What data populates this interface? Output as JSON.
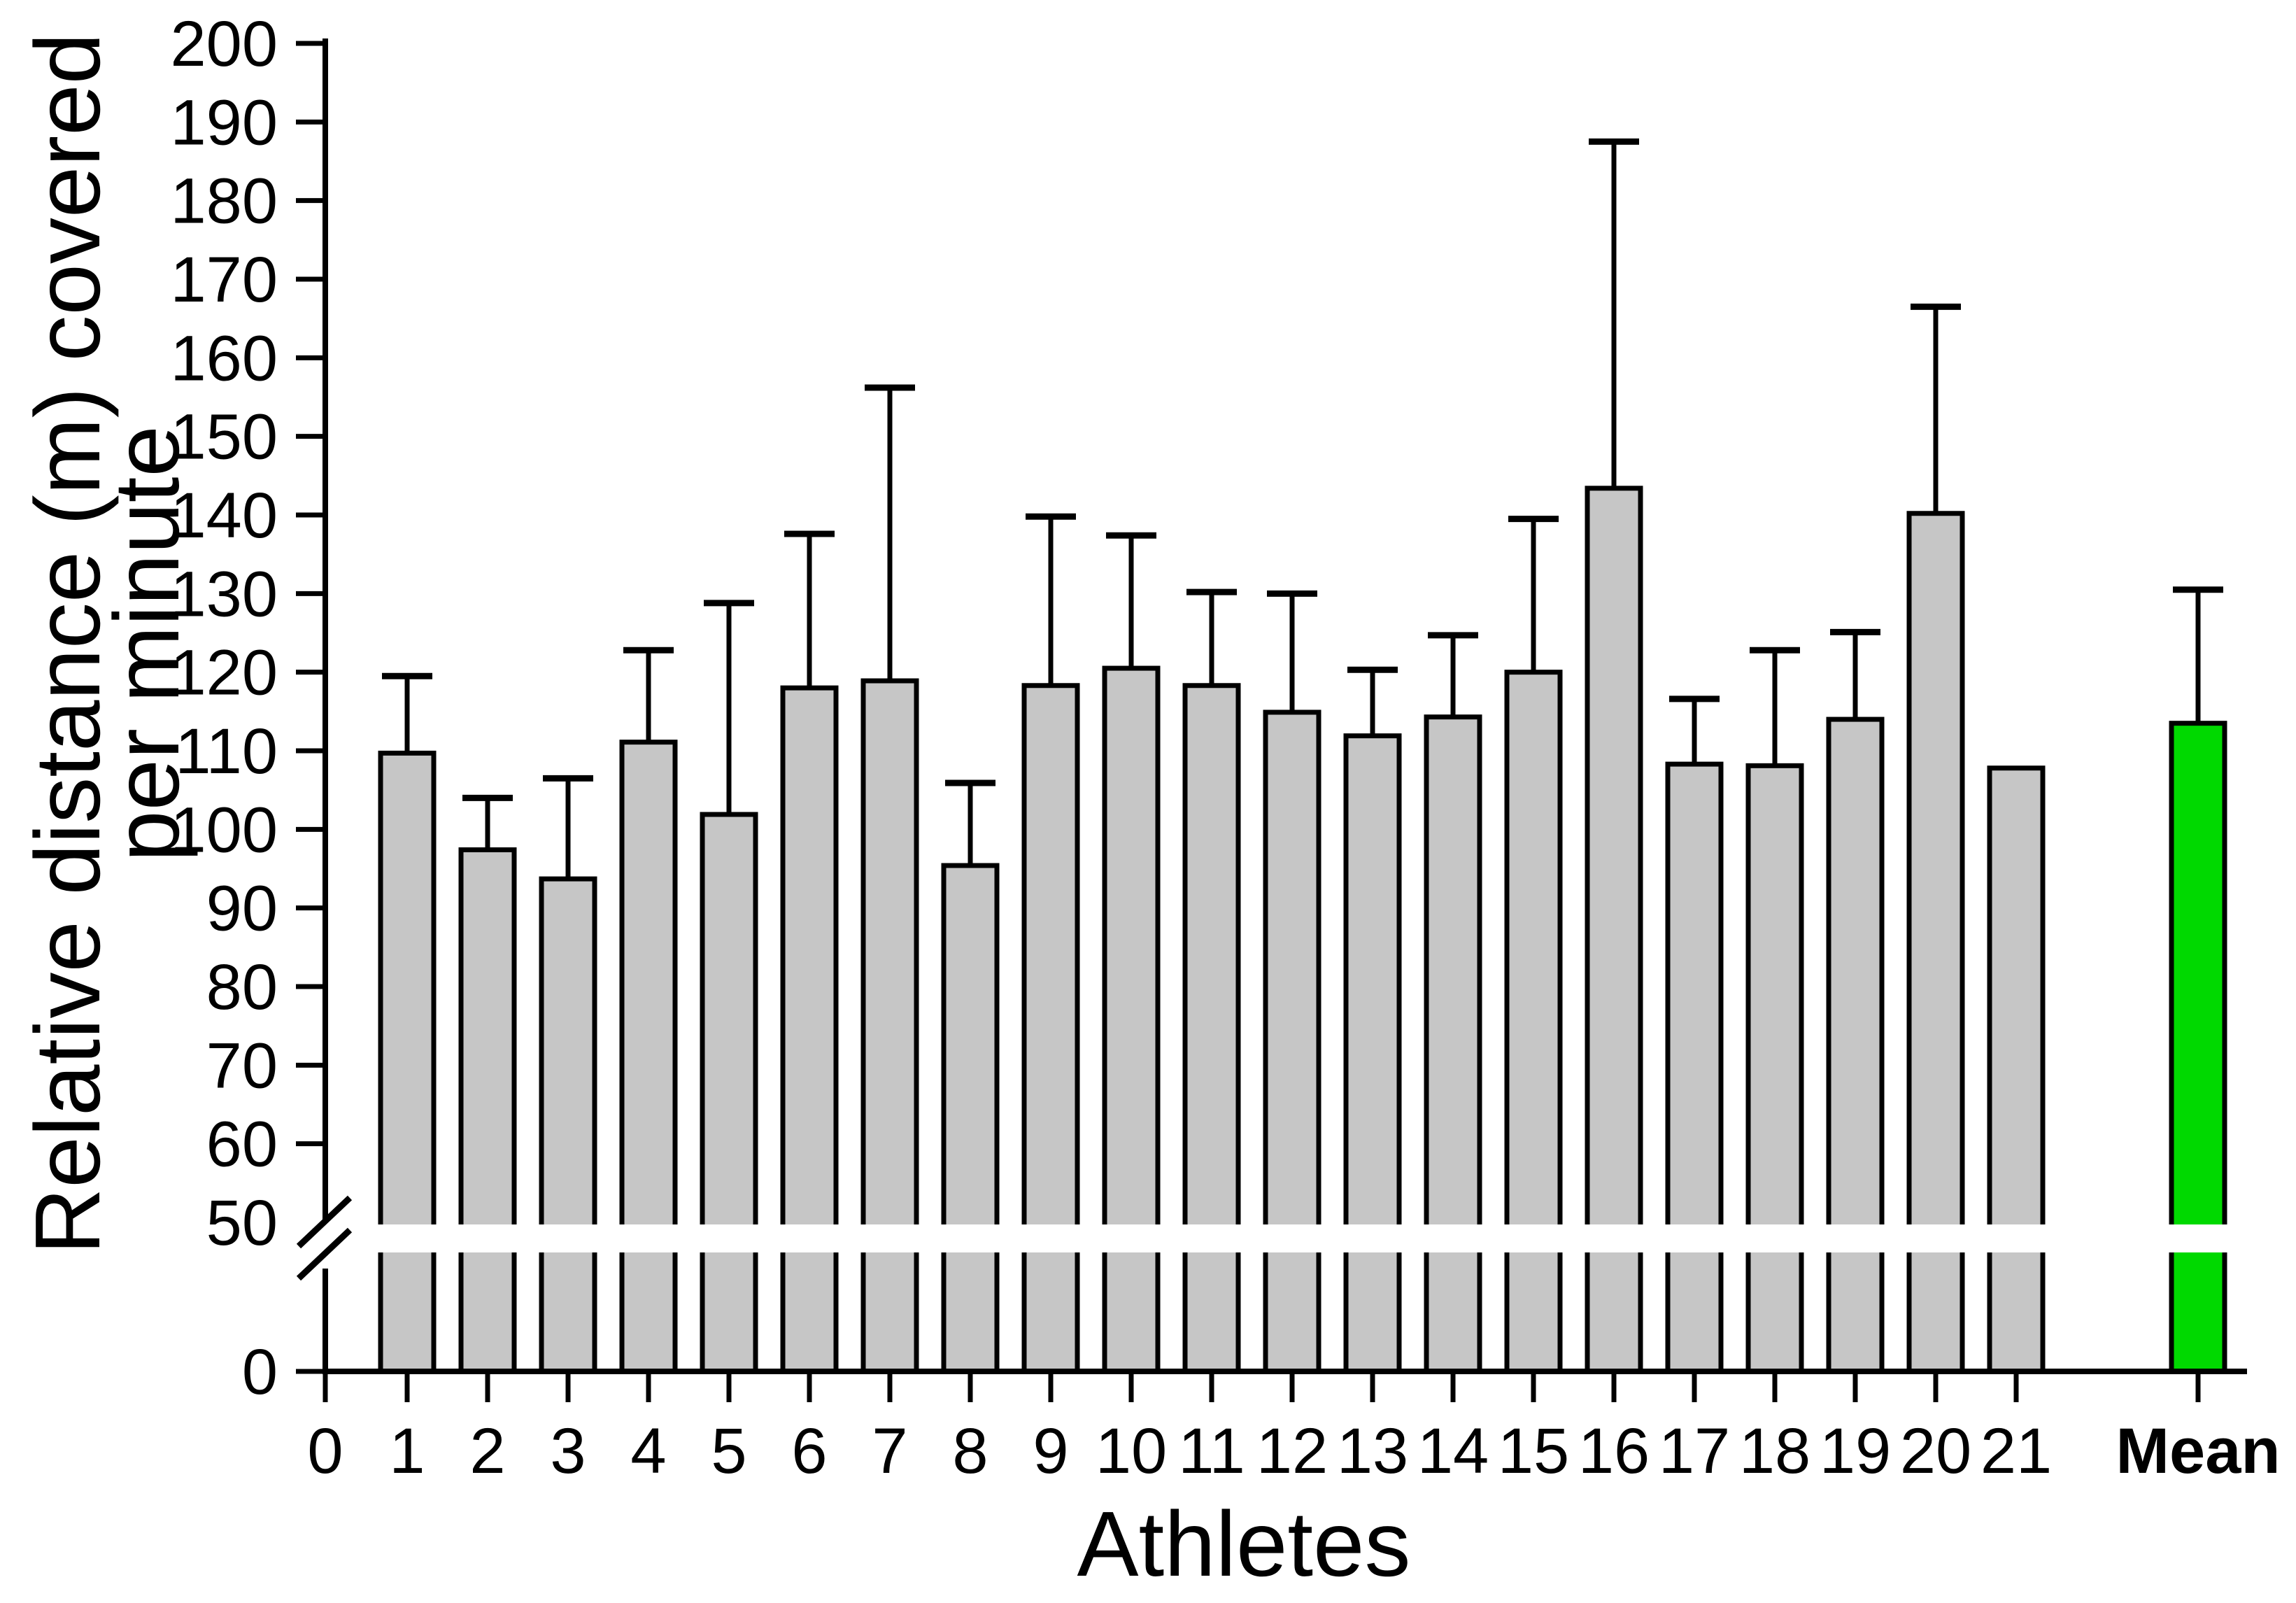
{
  "figure": {
    "xlabel": "Athletes",
    "ylabel_line1": "Relative distance (m) covered",
    "ylabel_line2": "per minute"
  },
  "chart_data": {
    "type": "bar",
    "title": "",
    "xlabel": "Athletes",
    "ylabel_lines": [
      "Relative distance (m) covered",
      "per minute"
    ],
    "categories": [
      "1",
      "2",
      "3",
      "4",
      "5",
      "6",
      "7",
      "8",
      "9",
      "10",
      "11",
      "12",
      "13",
      "14",
      "15",
      "16",
      "17",
      "18",
      "19",
      "20",
      "21",
      "Mean"
    ],
    "series": [
      {
        "name": "Relative distance (m) covered per minute",
        "values": [
          109.7,
          97.4,
          93.7,
          111.1,
          101.9,
          118.0,
          118.9,
          95.4,
          118.3,
          120.5,
          118.3,
          114.9,
          111.9,
          114.3,
          120.0,
          143.4,
          108.3,
          108.1,
          114.0,
          140.2,
          107.8,
          113.5
        ]
      }
    ],
    "error_top_values": [
      119.5,
      104.0,
      106.5,
      122.8,
      128.8,
      137.6,
      156.2,
      105.9,
      139.8,
      137.4,
      130.2,
      130.0,
      120.3,
      124.7,
      139.5,
      187.5,
      116.6,
      122.8,
      125.1,
      166.5,
      null,
      130.5
    ],
    "origin_tick_label": "0",
    "yticks_upper": [
      50,
      60,
      70,
      80,
      90,
      100,
      110,
      120,
      130,
      140,
      150,
      160,
      170,
      180,
      190,
      200
    ],
    "ytick_origin": 0,
    "ylim": [
      0,
      200
    ],
    "y_axis_break": {
      "between": [
        0,
        50
      ]
    },
    "grid": false,
    "legend": null,
    "highlight_category": "Mean",
    "colors": {
      "bar_fill": "#c6c6c6",
      "bar_edge": "#000000",
      "mean_bar_fill": "#00d900",
      "axis_color": "#000000",
      "background": "#ffffff"
    }
  }
}
